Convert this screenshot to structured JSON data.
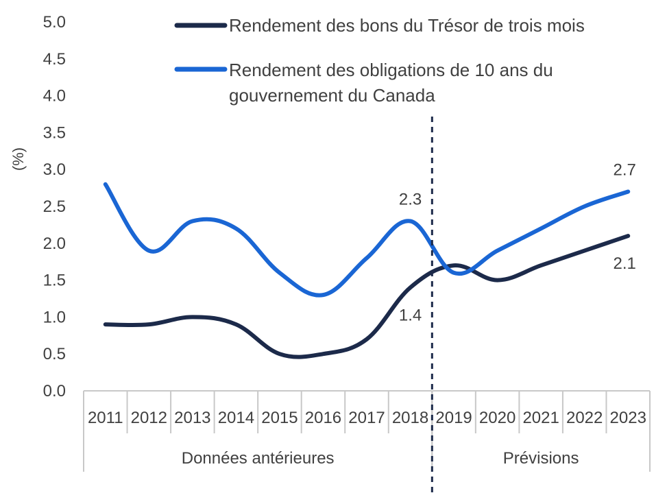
{
  "chart_data": {
    "type": "line",
    "ylabel": "(%)",
    "ylim": [
      0,
      5.0
    ],
    "yticks": [
      "0.0",
      "0.5",
      "1.0",
      "1.5",
      "2.0",
      "2.5",
      "3.0",
      "3.5",
      "4.0",
      "4.5",
      "5.0"
    ],
    "categories": [
      "2011",
      "2012",
      "2013",
      "2014",
      "2015",
      "2016",
      "2017",
      "2018",
      "2019",
      "2020",
      "2021",
      "2022",
      "2023"
    ],
    "groups": [
      {
        "label": "Données antérieures",
        "start": "2011",
        "end": "2018"
      },
      {
        "label": "Prévisions",
        "start": "2019",
        "end": "2023"
      }
    ],
    "divider_between": [
      "2018",
      "2019"
    ],
    "series": [
      {
        "name": "Rendement des bons du Trésor de trois mois",
        "color": "#1c2a4a",
        "values": [
          0.9,
          0.9,
          1.0,
          0.9,
          0.5,
          0.5,
          0.7,
          1.4,
          1.7,
          1.5,
          1.7,
          1.9,
          2.1
        ]
      },
      {
        "name_lines": [
          "Rendement des obligations de 10 ans du",
          "gouvernement du Canada"
        ],
        "color": "#1a66d4",
        "values": [
          2.8,
          1.9,
          2.3,
          2.2,
          1.6,
          1.3,
          1.8,
          2.3,
          1.6,
          1.9,
          2.2,
          2.5,
          2.7
        ]
      }
    ],
    "data_labels": [
      {
        "series": 1,
        "index": 7,
        "text": "2.3"
      },
      {
        "series": 0,
        "index": 7,
        "text": "1.4"
      },
      {
        "series": 1,
        "index": 12,
        "text": "2.7"
      },
      {
        "series": 0,
        "index": 12,
        "text": "2.1"
      }
    ],
    "legend": "top"
  }
}
